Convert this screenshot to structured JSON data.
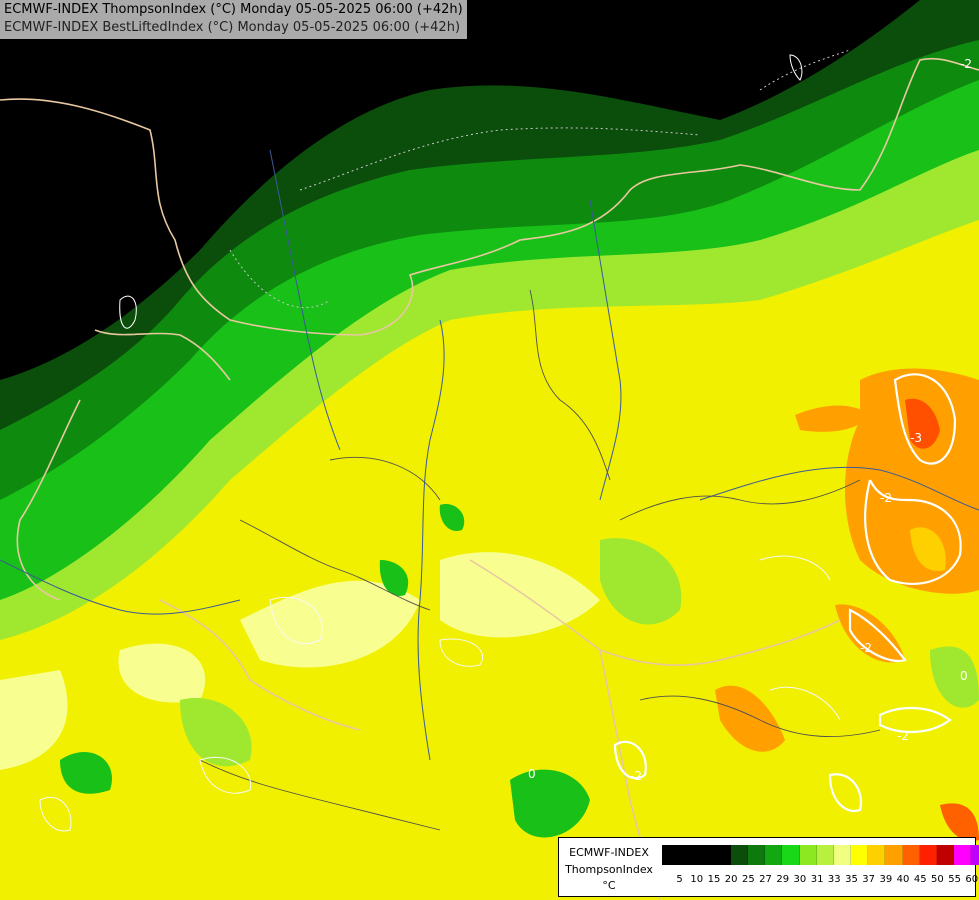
{
  "title": {
    "line1": "ECMWF-INDEX ThompsonIndex (°C) Monday 05-05-2025 06:00 (+42h)",
    "line2": "ECMWF-INDEX BestLiftedIndex (°C) Monday 05-05-2025 06:00 (+42h)"
  },
  "contour_labels": [
    "-2",
    "-3",
    "-2",
    "-2",
    "-2",
    "0",
    "0",
    "-2"
  ],
  "legend": {
    "model": "ECMWF-INDEX",
    "field": "ThompsonIndex",
    "unit": "°C",
    "ticks": [
      "5",
      "10",
      "15",
      "20",
      "25",
      "27",
      "29",
      "30",
      "31",
      "33",
      "35",
      "37",
      "39",
      "40",
      "45",
      "50",
      "55",
      "60"
    ],
    "colors": [
      "#000000",
      "#000000",
      "#000000",
      "#000000",
      "#0b4d0b",
      "#0e7a0e",
      "#11a811",
      "#18d818",
      "#8ce820",
      "#b8f040",
      "#f0ff80",
      "#ffff00",
      "#ffd000",
      "#ffa000",
      "#ff6000",
      "#ff2000",
      "#c00000",
      "#ff00ff",
      "#c000ff",
      "#8000ff",
      "#4000ff",
      "#0000ff"
    ]
  }
}
